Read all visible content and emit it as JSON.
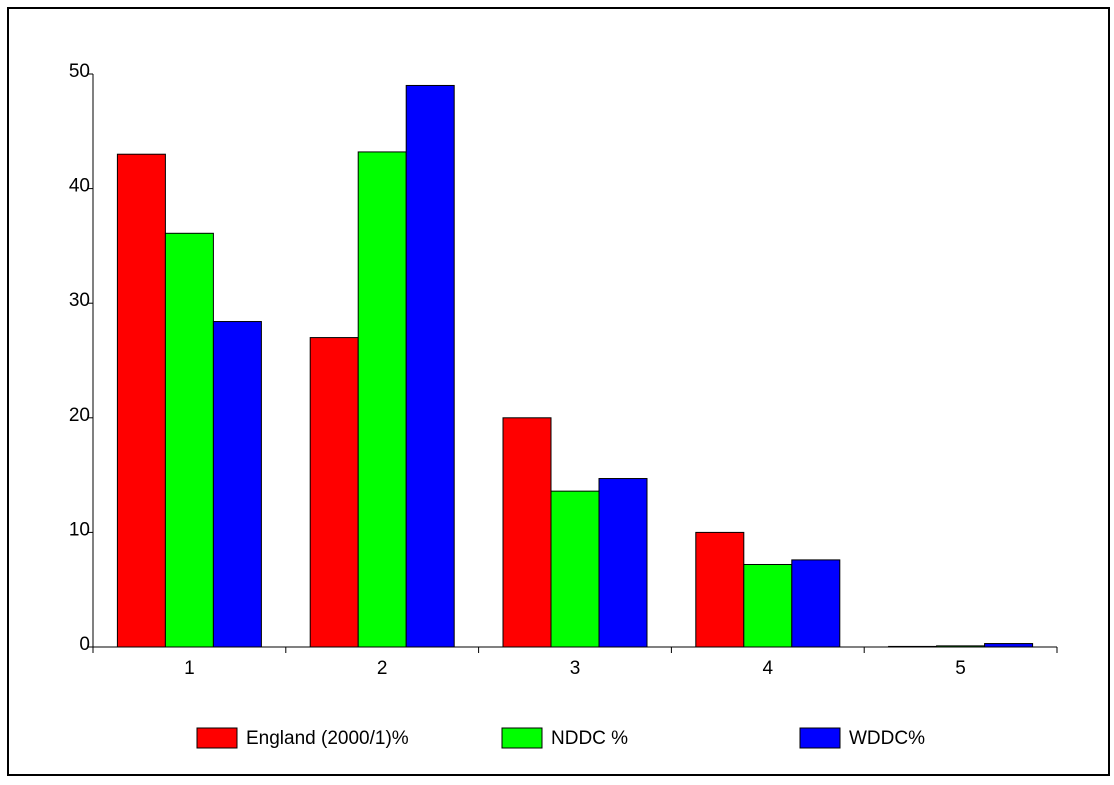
{
  "chart_data": {
    "type": "bar",
    "categories": [
      "1",
      "2",
      "3",
      "4",
      "5"
    ],
    "series": [
      {
        "name": "England (2000/1)%",
        "color": "#ff0000",
        "values": [
          43,
          27,
          20,
          10,
          0.05
        ]
      },
      {
        "name": "NDDC %",
        "color": "#00ff00",
        "values": [
          36.1,
          43.2,
          13.6,
          7.2,
          0.1
        ]
      },
      {
        "name": "WDDC%",
        "color": "#0000ff",
        "values": [
          28.4,
          49,
          14.7,
          7.6,
          0.3
        ]
      }
    ],
    "ylim": [
      0,
      50
    ],
    "yticks": [
      0,
      10,
      20,
      30,
      40,
      50
    ],
    "grid": false,
    "legend": "bottom"
  }
}
